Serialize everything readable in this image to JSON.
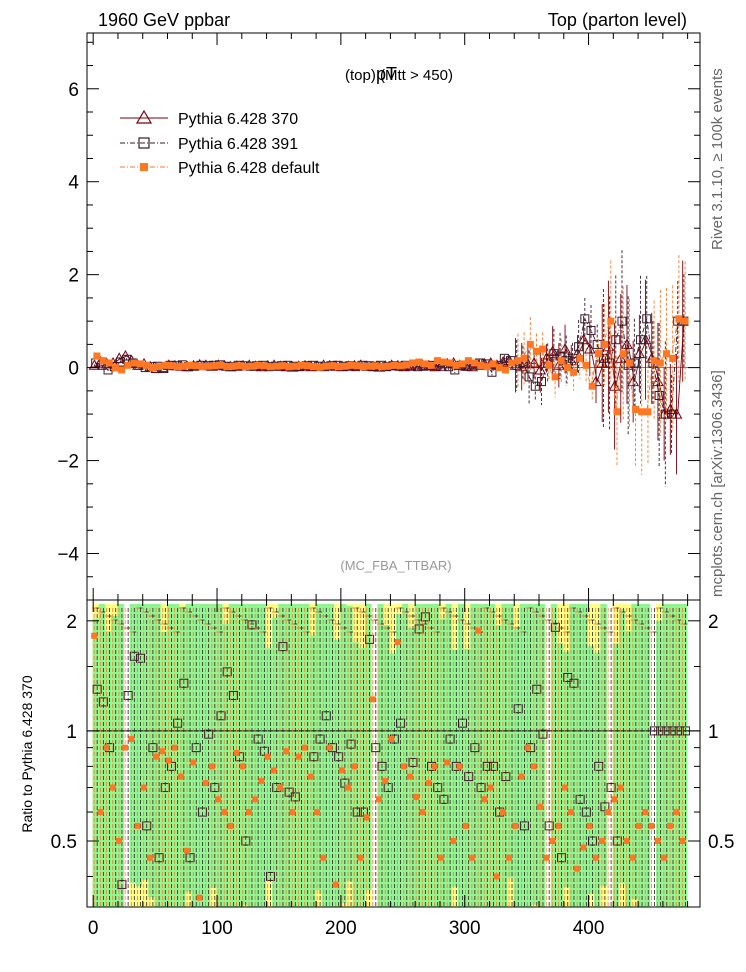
{
  "header": {
    "left": "1960 GeV ppbar",
    "right": "Top (parton level)"
  },
  "side_labels": {
    "rivet": "Rivet 3.1.10, ≥ 100k events",
    "mcplots": "mcplots.cern.ch [arXiv:1306.3436]"
  },
  "colors": {
    "s370": "#7a0010",
    "s391": "#3a1a2a",
    "sdef": "#ff7722",
    "band_yellow": "#ffff88",
    "band_green": "#90f590"
  },
  "chart_data": [
    {
      "type": "scatter",
      "title_main": "pT",
      "title_sub": "(top) (Mtt > 450)",
      "watermark": "(MC_FBA_TTBAR)",
      "xlim": [
        -5,
        490
      ],
      "ylim": [
        -5,
        7.2
      ],
      "y_ticks": [
        -4,
        -2,
        0,
        2,
        4,
        6
      ],
      "y_tick_labels": [
        "−4",
        "−2",
        "0",
        "2",
        "4",
        "6"
      ],
      "legend": [
        "Pythia 6.428 370",
        "Pythia 6.428 391",
        "Pythia 6.428 default"
      ],
      "x": [
        2,
        7,
        12,
        17,
        22,
        27,
        32,
        37,
        42,
        47,
        52,
        57,
        62,
        67,
        72,
        77,
        82,
        87,
        92,
        97,
        102,
        107,
        112,
        117,
        122,
        127,
        132,
        137,
        142,
        147,
        152,
        157,
        162,
        167,
        172,
        177,
        182,
        187,
        192,
        197,
        202,
        207,
        212,
        217,
        222,
        227,
        232,
        237,
        242,
        247,
        252,
        257,
        262,
        267,
        272,
        277,
        282,
        287,
        292,
        297,
        302,
        307,
        312,
        317,
        322,
        327,
        332,
        337,
        342,
        347,
        352,
        357,
        362,
        367,
        372,
        377,
        382,
        387,
        392,
        397,
        402,
        407,
        412,
        417,
        422,
        427,
        432,
        437,
        442,
        447,
        452,
        457,
        462,
        467,
        472,
        477
      ],
      "series": [
        {
          "name": "Pythia 6.428 370",
          "values": [
            0.05,
            0.12,
            0.08,
            0.1,
            0.2,
            0.25,
            0.15,
            0.05,
            0.08,
            0.02,
            -0.02,
            0.0,
            0.05,
            0.04,
            0.03,
            0.02,
            0.04,
            0.06,
            0.05,
            0.03,
            0.05,
            0.04,
            0.02,
            0.03,
            0.04,
            0.05,
            0.03,
            0.02,
            0.04,
            0.05,
            0.03,
            0.02,
            0.01,
            0.03,
            0.04,
            0.02,
            0.03,
            0.05,
            0.04,
            0.03,
            0.02,
            0.03,
            0.04,
            0.05,
            0.03,
            0.02,
            0.01,
            0.03,
            0.05,
            0.04,
            0.02,
            0.03,
            0.06,
            0.05,
            0.04,
            0.02,
            0.03,
            0.08,
            0.1,
            0.05,
            0.03,
            0.02,
            0.05,
            0.08,
            0.1,
            0.05,
            0.12,
            0.15,
            0.05,
            0.02,
            0.08,
            0.1,
            -0.05,
            0.2,
            0.35,
            0.05,
            0.4,
            0.15,
            0.3,
            0.6,
            0.4,
            -0.3,
            0.1,
            0.45,
            -0.4,
            0.2,
            0.5,
            -0.3,
            0.3,
            0.6,
            0.2,
            -0.3,
            -1.0,
            -0.9,
            -1.0,
            1.0
          ],
          "ratio": [
            1,
            1,
            1,
            1,
            1,
            1,
            1,
            1,
            1,
            1,
            1,
            1,
            1,
            1,
            1,
            1,
            1,
            1,
            1,
            1,
            1,
            1,
            1,
            1,
            1,
            1,
            1,
            1,
            1,
            1,
            1,
            1,
            1,
            1,
            1,
            1,
            1,
            1,
            1,
            1,
            1,
            1,
            1,
            1,
            1,
            1,
            1,
            1,
            1,
            1,
            1,
            1,
            1,
            1,
            1,
            1,
            1,
            1,
            1,
            1,
            1,
            1,
            1,
            1,
            1,
            1,
            1,
            1,
            1,
            1,
            1,
            1,
            1,
            1,
            1,
            1,
            1,
            1,
            1,
            1,
            1,
            1,
            1,
            1,
            1,
            1,
            1,
            1,
            1,
            1,
            1,
            1,
            1,
            1,
            1,
            1
          ]
        },
        {
          "name": "Pythia 6.428 391",
          "values": [
            0.1,
            0.05,
            -0.05,
            0.02,
            0.12,
            0.18,
            0.1,
            0.05,
            0.0,
            0.02,
            0.03,
            -0.02,
            0.05,
            0.04,
            0.06,
            0.02,
            0.03,
            0.05,
            0.04,
            0.05,
            0.06,
            0.03,
            0.02,
            0.05,
            0.04,
            0.03,
            0.04,
            0.05,
            0.02,
            0.03,
            0.04,
            0.05,
            0.03,
            0.02,
            0.04,
            0.05,
            0.03,
            0.02,
            0.04,
            0.05,
            0.03,
            0.04,
            0.02,
            0.05,
            0.04,
            0.03,
            0.05,
            0.02,
            0.04,
            0.03,
            0.05,
            0.04,
            0.02,
            0.03,
            0.05,
            0.04,
            0.08,
            0.02,
            -0.05,
            0.05,
            0.03,
            0.06,
            0.1,
            0.08,
            -0.1,
            0.05,
            0.2,
            0.15,
            0.05,
            0.1,
            -0.2,
            -0.4,
            -0.3,
            0.1,
            0.3,
            0.25,
            0.15,
            0.2,
            0.45,
            1.05,
            0.8,
            0.5,
            0.2,
            0.1,
            0.6,
            1.0,
            0.05,
            0.1,
            0.6,
            1.05,
            0.1,
            -0.6,
            -1.0,
            -1.0,
            1.0,
            1.0
          ],
          "ratio": [
            1.3,
            1.2,
            0.9,
            1.0,
            0.38,
            1.25,
            1.6,
            1.58,
            0.55,
            0.9,
            0.45,
            0.7,
            0.8,
            1.05,
            1.35,
            0.45,
            0.9,
            0.6,
            0.98,
            0.7,
            1.1,
            1.45,
            1.25,
            0.85,
            0.5,
            1.95,
            0.95,
            0.88,
            0.4,
            0.7,
            1.7,
            0.68,
            0.66,
            1.0,
            1.0,
            0.85,
            0.95,
            1.1,
            0.9,
            0.85,
            0.72,
            0.92,
            0.6,
            0.6,
            1.78,
            0.9,
            0.8,
            0.7,
            0.95,
            1.05,
            1.0,
            0.82,
            1.9,
            2.05,
            0.8,
            0.7,
            0.65,
            0.95,
            0.8,
            1.05,
            0.75,
            0.9,
            0.7,
            0.8,
            0.8,
            0.6,
            0.75,
            1.0,
            1.15,
            0.55,
            0.9,
            1.3,
            0.98,
            0.55,
            1.92,
            0.45,
            1.4,
            1.35,
            0.65,
            0.6,
            0.5,
            0.8,
            0.62,
            0.7,
            0.5,
            1.0,
            1.0,
            1.0,
            1.0,
            1.0,
            1.0,
            1.0,
            1.0,
            1.0,
            1.0,
            1.0
          ]
        },
        {
          "name": "Pythia 6.428 default",
          "values": [
            0.25,
            0.15,
            0.1,
            0.0,
            -0.05,
            0.05,
            0.1,
            0.08,
            0.05,
            0.0,
            0.02,
            0.05,
            0.04,
            0.02,
            0.03,
            0.05,
            0.04,
            0.02,
            0.03,
            0.04,
            0.05,
            0.02,
            0.03,
            0.04,
            0.02,
            0.03,
            0.05,
            0.04,
            0.02,
            0.03,
            0.04,
            0.02,
            0.03,
            0.05,
            0.04,
            0.02,
            0.01,
            0.03,
            0.04,
            0.02,
            0.03,
            0.05,
            0.04,
            0.02,
            0.03,
            0.04,
            0.02,
            0.03,
            0.05,
            0.04,
            0.06,
            0.1,
            0.12,
            0.08,
            0.05,
            0.15,
            0.12,
            0.1,
            0.05,
            0.08,
            0.15,
            0.1,
            0.05,
            0.02,
            0.08,
            0.0,
            -0.05,
            0.1,
            0.15,
            0.2,
            0.5,
            0.35,
            0.4,
            0.05,
            -0.2,
            0.15,
            0.0,
            -0.1,
            0.2,
            0.05,
            -0.4,
            0.3,
            0.5,
            1.0,
            -0.95,
            0.3,
            0.1,
            -0.9,
            -0.95,
            -0.95,
            0.15,
            0.1,
            0.3,
            0.2,
            1.05,
            1.0
          ],
          "ratio": [
            1.82,
            0.6,
            0.9,
            0.7,
            0.5,
            0.9,
            0.95,
            0.55,
            0.7,
            0.45,
            0.85,
            0.88,
            0.83,
            0.9,
            0.75,
            0.47,
            0.82,
            0.35,
            0.72,
            0.8,
            0.65,
            0.6,
            0.55,
            0.87,
            0.8,
            0.6,
            0.65,
            0.73,
            0.85,
            0.78,
            0.7,
            0.88,
            0.6,
            0.85,
            0.9,
            0.75,
            0.6,
            0.45,
            0.9,
            0.38,
            0.78,
            0.7,
            0.8,
            0.45,
            0.58,
            1.22,
            0.65,
            0.73,
            0.95,
            1.75,
            0.8,
            0.75,
            0.66,
            0.6,
            0.72,
            0.8,
            0.45,
            0.82,
            0.5,
            0.8,
            0.55,
            0.45,
            1.88,
            0.65,
            0.7,
            0.4,
            0.6,
            0.45,
            0.55,
            0.75,
            0.9,
            0.8,
            0.62,
            0.45,
            0.5,
            0.55,
            0.7,
            0.6,
            0.42,
            0.48,
            0.55,
            0.45,
            0.5,
            0.6,
            0.65,
            0.7,
            0.5,
            0.45,
            0.55,
            0.6,
            0.55,
            0.5,
            0.45,
            0.55,
            0.6,
            0.5
          ]
        }
      ]
    },
    {
      "type": "scatter",
      "ylabel": "Ratio to Pythia 6.428 370",
      "xlim": [
        -5,
        490
      ],
      "ylim": [
        0.33,
        2.28
      ],
      "x_ticks": [
        0,
        100,
        200,
        300,
        400
      ],
      "x_tick_labels": [
        "0",
        "100",
        "200",
        "300",
        "400"
      ],
      "y_ticks": [
        0.5,
        1,
        2
      ],
      "y_tick_labels": [
        "0.5",
        "1",
        "2"
      ]
    }
  ]
}
